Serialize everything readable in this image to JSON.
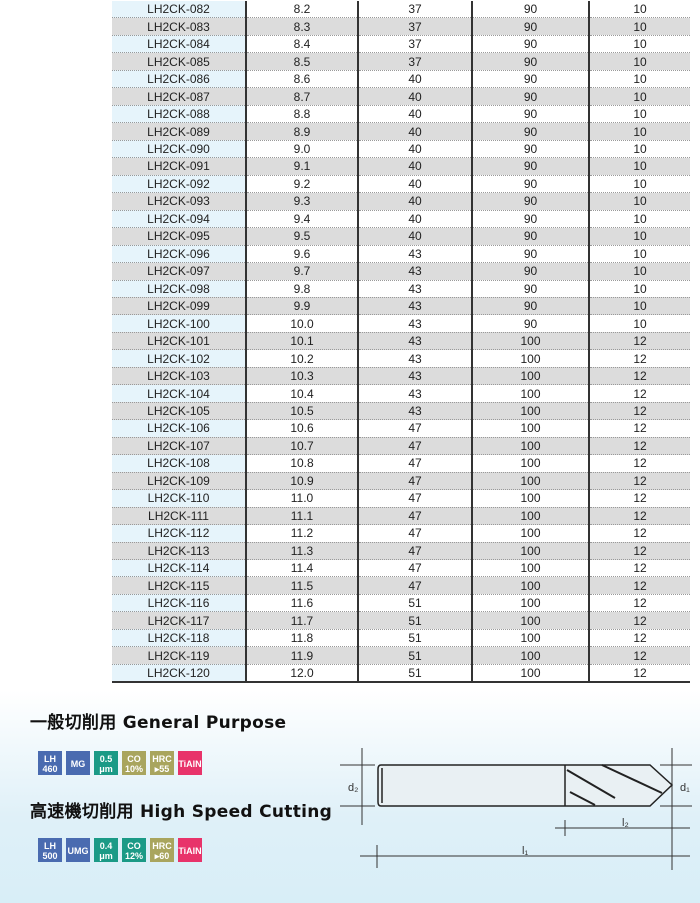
{
  "table": {
    "codes": [
      "LH2CK-082",
      "LH2CK-083",
      "LH2CK-084",
      "LH2CK-085",
      "LH2CK-086",
      "LH2CK-087",
      "LH2CK-088",
      "LH2CK-089",
      "LH2CK-090",
      "LH2CK-091",
      "LH2CK-092",
      "LH2CK-093",
      "LH2CK-094",
      "LH2CK-095",
      "LH2CK-096",
      "LH2CK-097",
      "LH2CK-098",
      "LH2CK-099",
      "LH2CK-100",
      "LH2CK-101",
      "LH2CK-102",
      "LH2CK-103",
      "LH2CK-104",
      "LH2CK-105",
      "LH2CK-106",
      "LH2CK-107",
      "LH2CK-108",
      "LH2CK-109",
      "LH2CK-110",
      "LH2CK-111",
      "LH2CK-112",
      "LH2CK-113",
      "LH2CK-114",
      "LH2CK-115",
      "LH2CK-116",
      "LH2CK-117",
      "LH2CK-118",
      "LH2CK-119",
      "LH2CK-120"
    ],
    "d1": [
      "8.2",
      "8.3",
      "8.4",
      "8.5",
      "8.6",
      "8.7",
      "8.8",
      "8.9",
      "9.0",
      "9.1",
      "9.2",
      "9.3",
      "9.4",
      "9.5",
      "9.6",
      "9.7",
      "9.8",
      "9.9",
      "10.0",
      "10.1",
      "10.2",
      "10.3",
      "10.4",
      "10.5",
      "10.6",
      "10.7",
      "10.8",
      "10.9",
      "11.0",
      "11.1",
      "11.2",
      "11.3",
      "11.4",
      "11.5",
      "11.6",
      "11.7",
      "11.8",
      "11.9",
      "12.0"
    ],
    "l2": [
      "37",
      "37",
      "37",
      "37",
      "40",
      "40",
      "40",
      "40",
      "40",
      "40",
      "40",
      "40",
      "40",
      "40",
      "43",
      "43",
      "43",
      "43",
      "43",
      "43",
      "43",
      "43",
      "43",
      "43",
      "47",
      "47",
      "47",
      "47",
      "47",
      "47",
      "47",
      "47",
      "47",
      "47",
      "51",
      "51",
      "51",
      "51",
      "51"
    ],
    "l1": [
      "90",
      "90",
      "90",
      "90",
      "90",
      "90",
      "90",
      "90",
      "90",
      "90",
      "90",
      "90",
      "90",
      "90",
      "90",
      "90",
      "90",
      "90",
      "90",
      "100",
      "100",
      "100",
      "100",
      "100",
      "100",
      "100",
      "100",
      "100",
      "100",
      "100",
      "100",
      "100",
      "100",
      "100",
      "100",
      "100",
      "100",
      "100",
      "100"
    ],
    "d2": [
      "10",
      "10",
      "10",
      "10",
      "10",
      "10",
      "10",
      "10",
      "10",
      "10",
      "10",
      "10",
      "10",
      "10",
      "10",
      "10",
      "10",
      "10",
      "10",
      "12",
      "12",
      "12",
      "12",
      "12",
      "12",
      "12",
      "12",
      "12",
      "12",
      "12",
      "12",
      "12",
      "12",
      "12",
      "12",
      "12",
      "12",
      "12",
      "12"
    ]
  },
  "general": {
    "title": "一般切削用 General Purpose",
    "badges": [
      {
        "text": "LH\n460",
        "color": "#4a6bb0"
      },
      {
        "text": "MG",
        "color": "#4a6bb0"
      },
      {
        "text": "0.5\nμm",
        "color": "#1b9a86"
      },
      {
        "text": "CO\n10%",
        "color": "#a9a55e"
      },
      {
        "text": "HRC\n▸55",
        "color": "#a9a55e"
      },
      {
        "text": "TiAlN",
        "color": "#e8336a"
      }
    ]
  },
  "hsc": {
    "title": "高速機切削用 High Speed Cutting",
    "badges": [
      {
        "text": "LH\n500",
        "color": "#4a6bb0"
      },
      {
        "text": "UMG",
        "color": "#4a6bb0"
      },
      {
        "text": "0.4\nμm",
        "color": "#1b9a86"
      },
      {
        "text": "CO\n12%",
        "color": "#1b9a86"
      },
      {
        "text": "HRC\n▸60",
        "color": "#a9a55e"
      },
      {
        "text": "TiAlN",
        "color": "#e8336a"
      }
    ]
  },
  "diagram": {
    "d2": "d₂",
    "d1": "d₁",
    "l2": "l₂",
    "l1": "l₁"
  }
}
